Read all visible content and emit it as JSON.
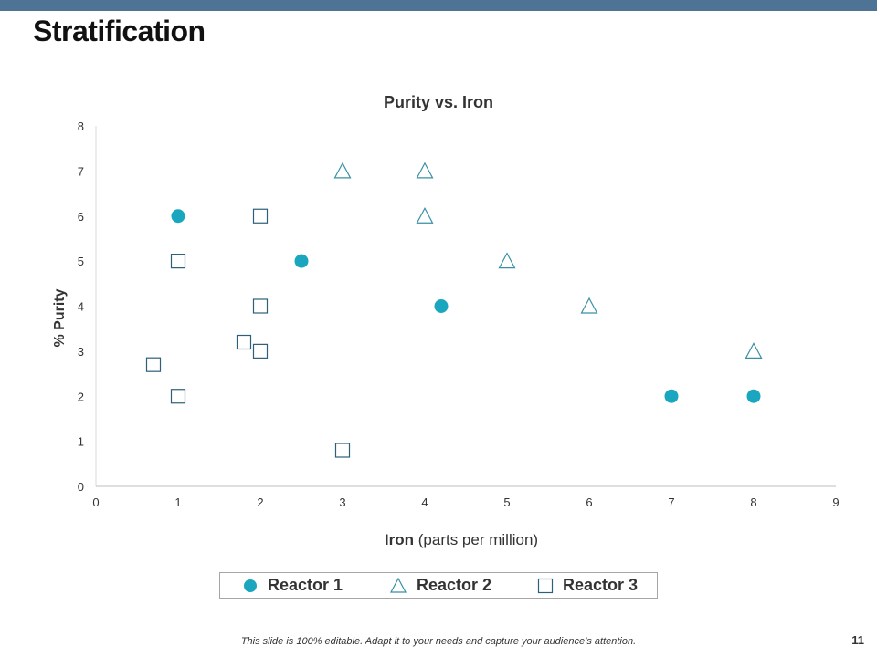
{
  "slide": {
    "title": "Stratification",
    "footer_note": "This slide is 100% editable. Adapt it to your needs and capture your audience’s attention.",
    "page_number": "11",
    "accent_bar_color": "#4f7394"
  },
  "chart_data": {
    "type": "scatter",
    "title": "Purity vs. Iron",
    "xlabel_bold": "Iron",
    "xlabel_rest": " (parts per million)",
    "ylabel": "% Purity",
    "xlim": [
      0,
      9
    ],
    "ylim": [
      0,
      8
    ],
    "xticks": [
      0,
      1,
      2,
      3,
      4,
      5,
      6,
      7,
      8,
      9
    ],
    "yticks": [
      0,
      1,
      2,
      3,
      4,
      5,
      6,
      7,
      8
    ],
    "grid": false,
    "legend_position": "bottom",
    "series": [
      {
        "name": "Reactor 1",
        "marker": "filled-circle",
        "color": "#1ba6bf",
        "points": [
          [
            1,
            6
          ],
          [
            2.5,
            5
          ],
          [
            4.2,
            4
          ],
          [
            7,
            2
          ],
          [
            8,
            2
          ]
        ]
      },
      {
        "name": "Reactor 2",
        "marker": "open-triangle",
        "color": "#3a8fa6",
        "points": [
          [
            3,
            7
          ],
          [
            4,
            7
          ],
          [
            4,
            6
          ],
          [
            5,
            5
          ],
          [
            6,
            4
          ],
          [
            8,
            3
          ]
        ]
      },
      {
        "name": "Reactor 3",
        "marker": "open-square",
        "color": "#2e5f78",
        "points": [
          [
            1,
            5
          ],
          [
            2,
            6
          ],
          [
            2,
            4
          ],
          [
            2,
            3
          ],
          [
            1.8,
            3.2
          ],
          [
            0.7,
            2.7
          ],
          [
            1,
            2
          ],
          [
            3,
            0.8
          ]
        ]
      }
    ]
  }
}
